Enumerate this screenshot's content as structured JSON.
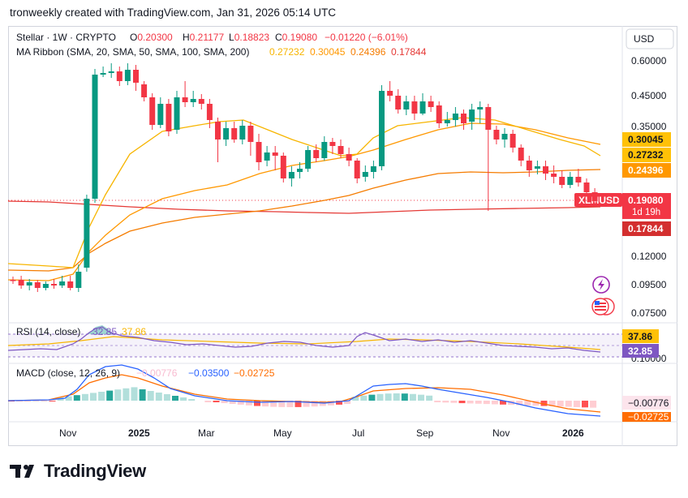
{
  "header": {
    "line": "tronweekly created with TradingView.com, Jan 31, 2026 05:14 UTC"
  },
  "currency": "USD",
  "symbol": {
    "name": "Stellar · 1W · CRYPTO",
    "ohlc": [
      {
        "k": "O",
        "v": "0.20300"
      },
      {
        "k": "H",
        "v": "0.21177"
      },
      {
        "k": "L",
        "v": "0.18823"
      },
      {
        "k": "C",
        "v": "0.19080"
      }
    ],
    "change": "−0.01220 (−6.01%)"
  },
  "ma": {
    "label": "MA Ribbon (SMA, 20, SMA, 50, SMA, 100, SMA, 200)",
    "values": [
      "0.27232",
      "0.30045",
      "0.24396",
      "0.17844"
    ],
    "colors": [
      "#f7b500",
      "#ff9800",
      "#f57c00",
      "#e53935"
    ]
  },
  "price_axis": [
    "0.60000",
    "0.45000",
    "0.35000",
    "0.12000",
    "0.09500",
    "0.07500"
  ],
  "price_tags": [
    {
      "text": "0.30045",
      "bg": "#ffc107",
      "fg": "#131722"
    },
    {
      "text": "0.27232",
      "bg": "#ffc107",
      "fg": "#131722"
    },
    {
      "text": "0.24396",
      "bg": "#ff9800",
      "fg": "#ffffff"
    },
    {
      "text": "XLMUSD",
      "bg": "#f23645",
      "fg": "#ffffff"
    },
    {
      "text": "0.19080",
      "bg": "#f23645",
      "fg": "#ffffff"
    },
    {
      "text": "1d 19h",
      "bg": "#f23645",
      "fg": "#ffffff"
    },
    {
      "text": "0.17844",
      "bg": "#d32f2f",
      "fg": "#ffffff"
    }
  ],
  "rsi": {
    "label": "RSI (14, close)",
    "value": "32.85",
    "ma_value": "37.86",
    "axis": "0.10000",
    "tag_ma": "37.86",
    "tag_val": "32.85"
  },
  "macd": {
    "label": "MACD (close, 12, 26, 9)",
    "hist": "−0.00776",
    "macd": "−0.03500",
    "signal": "−0.02725",
    "tag_hist": "−0.00776",
    "tag_signal": "−0.02725"
  },
  "x_axis": [
    "Nov",
    "2025",
    "Mar",
    "May",
    "Jul",
    "Sep",
    "Nov",
    "2026"
  ],
  "colors": {
    "up": "#089981",
    "down": "#f23645",
    "rsi": "#7e57c2",
    "macd": "#2962ff",
    "signal": "#ff6d00"
  },
  "brand": "TradingView"
}
